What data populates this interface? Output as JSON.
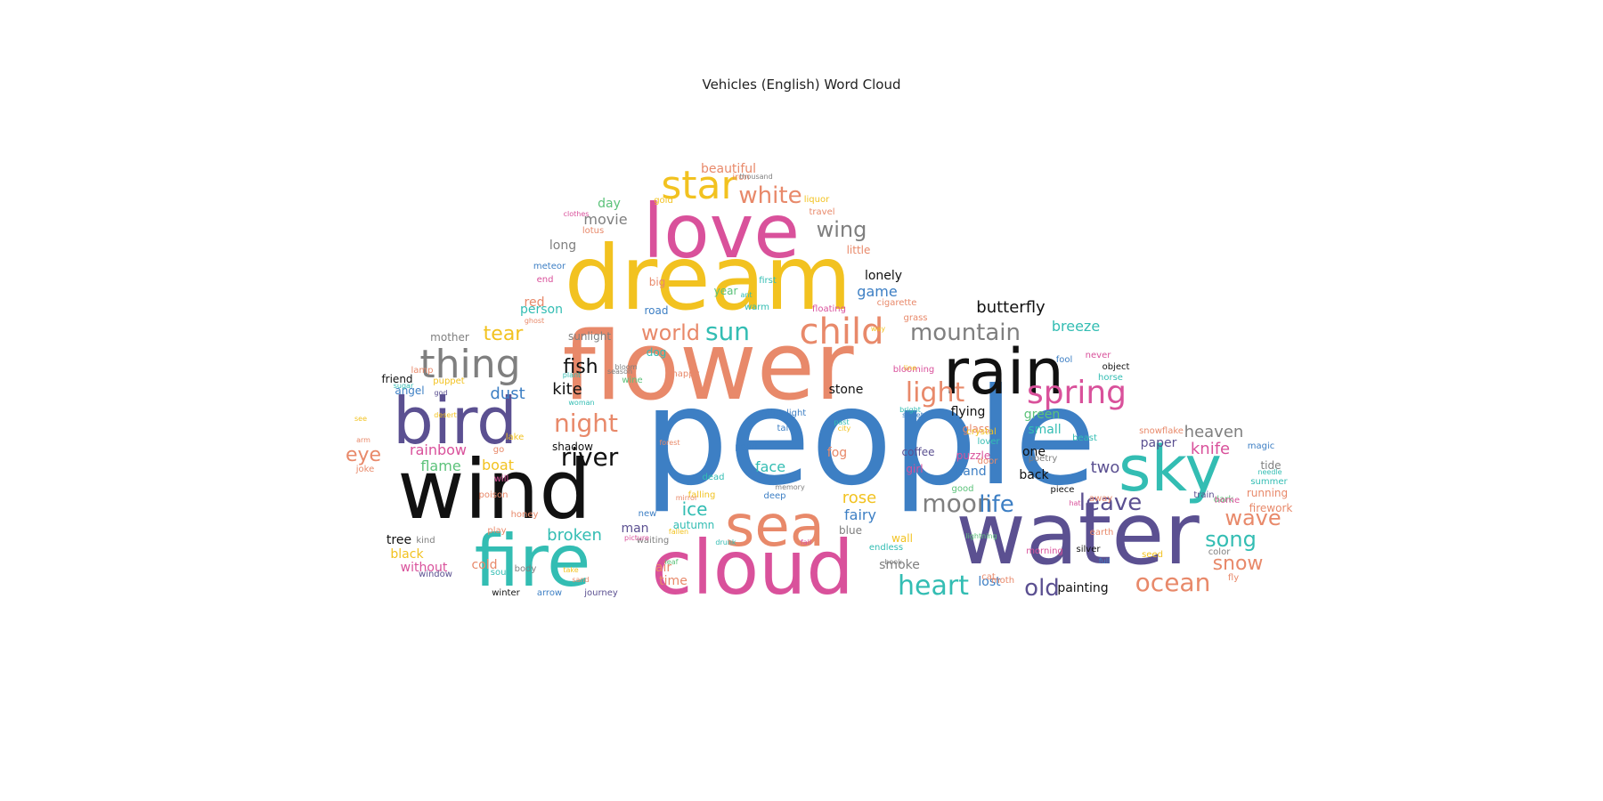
{
  "title": "Vehicles (English) Word Cloud",
  "palette": {
    "blue": "#3d7fc4",
    "orange": "#e8896a",
    "black": "#111111",
    "purple": "#5b5091",
    "pink": "#d9519b",
    "teal": "#33bdb3",
    "yellow": "#f2c220",
    "gray": "#7f7f7f",
    "green": "#5cc27a"
  },
  "words": [
    {
      "text": "people",
      "color": "blue"
    },
    {
      "text": "flower",
      "color": "orange"
    },
    {
      "text": "water",
      "color": "purple"
    },
    {
      "text": "wind",
      "color": "black"
    },
    {
      "text": "dream",
      "color": "yellow"
    },
    {
      "text": "cloud",
      "color": "pink"
    },
    {
      "text": "fire",
      "color": "teal"
    },
    {
      "text": "love",
      "color": "pink"
    },
    {
      "text": "rain",
      "color": "black"
    },
    {
      "text": "bird",
      "color": "purple"
    },
    {
      "text": "sea",
      "color": "orange"
    },
    {
      "text": "sky",
      "color": "teal"
    },
    {
      "text": "thing",
      "color": "gray"
    },
    {
      "text": "star",
      "color": "yellow"
    },
    {
      "text": "child",
      "color": "orange"
    },
    {
      "text": "spring",
      "color": "pink"
    },
    {
      "text": "light",
      "color": "orange"
    },
    {
      "text": "night",
      "color": "orange"
    },
    {
      "text": "river",
      "color": "black"
    },
    {
      "text": "white",
      "color": "orange"
    },
    {
      "text": "sun",
      "color": "teal"
    },
    {
      "text": "world",
      "color": "orange"
    },
    {
      "text": "mountain",
      "color": "gray"
    },
    {
      "text": "moon",
      "color": "gray"
    },
    {
      "text": "life",
      "color": "blue"
    },
    {
      "text": "leave",
      "color": "purple"
    },
    {
      "text": "heart",
      "color": "teal"
    },
    {
      "text": "ocean",
      "color": "orange"
    },
    {
      "text": "wave",
      "color": "orange"
    },
    {
      "text": "song",
      "color": "teal"
    },
    {
      "text": "snow",
      "color": "orange"
    },
    {
      "text": "old",
      "color": "purple"
    },
    {
      "text": "fish",
      "color": "black"
    },
    {
      "text": "tear",
      "color": "yellow"
    },
    {
      "text": "wing",
      "color": "gray"
    },
    {
      "text": "butterfly",
      "color": "black"
    },
    {
      "text": "breeze",
      "color": "teal"
    },
    {
      "text": "eye",
      "color": "orange"
    },
    {
      "text": "broken",
      "color": "teal"
    },
    {
      "text": "ice",
      "color": "teal"
    },
    {
      "text": "dust",
      "color": "blue"
    },
    {
      "text": "kite",
      "color": "black"
    },
    {
      "text": "rainbow",
      "color": "pink"
    },
    {
      "text": "flame",
      "color": "green"
    },
    {
      "text": "boat",
      "color": "yellow"
    },
    {
      "text": "face",
      "color": "teal"
    },
    {
      "text": "rose",
      "color": "yellow"
    },
    {
      "text": "fairy",
      "color": "blue"
    },
    {
      "text": "heaven",
      "color": "gray"
    },
    {
      "text": "knife",
      "color": "pink"
    },
    {
      "text": "two",
      "color": "purple"
    },
    {
      "text": "movie",
      "color": "gray"
    },
    {
      "text": "game",
      "color": "blue"
    },
    {
      "text": "day",
      "color": "green"
    },
    {
      "text": "beautiful",
      "color": "orange"
    },
    {
      "text": "stone",
      "color": "black"
    },
    {
      "text": "flying",
      "color": "black"
    },
    {
      "text": "green",
      "color": "green"
    },
    {
      "text": "small",
      "color": "teal"
    },
    {
      "text": "glass",
      "color": "orange"
    },
    {
      "text": "hand",
      "color": "blue"
    },
    {
      "text": "back",
      "color": "black"
    },
    {
      "text": "one",
      "color": "black"
    },
    {
      "text": "paper",
      "color": "purple"
    },
    {
      "text": "fog",
      "color": "orange"
    },
    {
      "text": "man",
      "color": "purple"
    },
    {
      "text": "autumn",
      "color": "teal"
    },
    {
      "text": "tree",
      "color": "black"
    },
    {
      "text": "black",
      "color": "yellow"
    },
    {
      "text": "without",
      "color": "pink"
    },
    {
      "text": "cold",
      "color": "orange"
    },
    {
      "text": "air",
      "color": "orange"
    },
    {
      "text": "time",
      "color": "orange"
    },
    {
      "text": "smoke",
      "color": "gray"
    },
    {
      "text": "lost",
      "color": "blue"
    },
    {
      "text": "painting",
      "color": "black"
    },
    {
      "text": "wall",
      "color": "yellow"
    },
    {
      "text": "blue",
      "color": "gray"
    },
    {
      "text": "coffee",
      "color": "purple"
    },
    {
      "text": "puzzle",
      "color": "pink"
    },
    {
      "text": "girl",
      "color": "pink"
    },
    {
      "text": "long",
      "color": "gray"
    },
    {
      "text": "lonely",
      "color": "black"
    },
    {
      "text": "little",
      "color": "orange"
    },
    {
      "text": "year",
      "color": "green"
    },
    {
      "text": "big",
      "color": "orange"
    },
    {
      "text": "red",
      "color": "orange"
    },
    {
      "text": "person",
      "color": "teal"
    },
    {
      "text": "road",
      "color": "blue"
    },
    {
      "text": "sunlight",
      "color": "gray"
    },
    {
      "text": "mother",
      "color": "gray"
    },
    {
      "text": "friend",
      "color": "black"
    },
    {
      "text": "angel",
      "color": "blue"
    },
    {
      "text": "shadow",
      "color": "black"
    },
    {
      "text": "dog",
      "color": "teal"
    },
    {
      "text": "tide",
      "color": "gray"
    },
    {
      "text": "running",
      "color": "orange"
    },
    {
      "text": "firework",
      "color": "orange"
    },
    {
      "text": "summer",
      "color": "teal"
    },
    {
      "text": "winter",
      "color": "black"
    },
    {
      "text": "arrow",
      "color": "blue"
    },
    {
      "text": "journey",
      "color": "purple"
    },
    {
      "text": "window",
      "color": "purple"
    },
    {
      "text": "soul",
      "color": "teal"
    },
    {
      "text": "body",
      "color": "gray"
    },
    {
      "text": "kind",
      "color": "gray"
    },
    {
      "text": "new",
      "color": "blue"
    },
    {
      "text": "falling",
      "color": "yellow"
    },
    {
      "text": "dead",
      "color": "teal"
    },
    {
      "text": "tale",
      "color": "blue"
    },
    {
      "text": "moonlight",
      "color": "blue"
    },
    {
      "text": "pearl",
      "color": "blue"
    },
    {
      "text": "memory",
      "color": "gray"
    },
    {
      "text": "deep",
      "color": "blue"
    },
    {
      "text": "mirror",
      "color": "orange"
    },
    {
      "text": "waiting",
      "color": "gray"
    },
    {
      "text": "picture",
      "color": "pink"
    },
    {
      "text": "fallen",
      "color": "yellow"
    },
    {
      "text": "drunk",
      "color": "teal"
    },
    {
      "text": "fall",
      "color": "pink"
    },
    {
      "text": "endless",
      "color": "teal"
    },
    {
      "text": "book",
      "color": "gray"
    },
    {
      "text": "lightning",
      "color": "green"
    },
    {
      "text": "morning",
      "color": "pink"
    },
    {
      "text": "silver",
      "color": "black"
    },
    {
      "text": "earth",
      "color": "orange"
    },
    {
      "text": "seed",
      "color": "yellow"
    },
    {
      "text": "full",
      "color": "blue"
    },
    {
      "text": "cat",
      "color": "orange"
    },
    {
      "text": "moth",
      "color": "orange"
    },
    {
      "text": "color",
      "color": "gray"
    },
    {
      "text": "fly",
      "color": "orange"
    },
    {
      "text": "dark",
      "color": "green"
    },
    {
      "text": "train",
      "color": "purple"
    },
    {
      "text": "home",
      "color": "pink"
    },
    {
      "text": "needle",
      "color": "teal"
    },
    {
      "text": "magic",
      "color": "blue"
    },
    {
      "text": "snowflake",
      "color": "orange"
    },
    {
      "text": "beast",
      "color": "teal"
    },
    {
      "text": "away",
      "color": "orange"
    },
    {
      "text": "hat",
      "color": "pink"
    },
    {
      "text": "piece",
      "color": "black"
    },
    {
      "text": "poetry",
      "color": "gray"
    },
    {
      "text": "lover",
      "color": "teal"
    },
    {
      "text": "good",
      "color": "green"
    },
    {
      "text": "door",
      "color": "orange"
    },
    {
      "text": "crystal",
      "color": "yellow"
    },
    {
      "text": "object",
      "color": "black"
    },
    {
      "text": "horse",
      "color": "teal"
    },
    {
      "text": "never",
      "color": "pink"
    },
    {
      "text": "fool",
      "color": "blue"
    },
    {
      "text": "blooming",
      "color": "pink"
    },
    {
      "text": "grass",
      "color": "orange"
    },
    {
      "text": "line",
      "color": "yellow"
    },
    {
      "text": "sweet",
      "color": "blue"
    },
    {
      "text": "bright",
      "color": "teal"
    },
    {
      "text": "city",
      "color": "yellow"
    },
    {
      "text": "past",
      "color": "teal"
    },
    {
      "text": "way",
      "color": "yellow"
    },
    {
      "text": "cigarette",
      "color": "orange"
    },
    {
      "text": "floating",
      "color": "pink"
    },
    {
      "text": "first",
      "color": "teal"
    },
    {
      "text": "warm",
      "color": "teal"
    },
    {
      "text": "ant",
      "color": "teal"
    },
    {
      "text": "travel",
      "color": "orange"
    },
    {
      "text": "liquor",
      "color": "yellow"
    },
    {
      "text": "iron",
      "color": "orange"
    },
    {
      "text": "gold",
      "color": "yellow"
    },
    {
      "text": "thousand",
      "color": "gray"
    },
    {
      "text": "clothes",
      "color": "pink"
    },
    {
      "text": "lotus",
      "color": "orange"
    },
    {
      "text": "meteor",
      "color": "blue"
    },
    {
      "text": "end",
      "color": "pink"
    },
    {
      "text": "ghost",
      "color": "orange"
    },
    {
      "text": "happy",
      "color": "orange"
    },
    {
      "text": "bloom",
      "color": "gray"
    },
    {
      "text": "wine",
      "color": "green"
    },
    {
      "text": "season",
      "color": "gray"
    },
    {
      "text": "plant",
      "color": "teal"
    },
    {
      "text": "woman",
      "color": "teal"
    },
    {
      "text": "forest",
      "color": "orange"
    },
    {
      "text": "lake",
      "color": "yellow"
    },
    {
      "text": "go",
      "color": "orange"
    },
    {
      "text": "will",
      "color": "pink"
    },
    {
      "text": "poison",
      "color": "orange"
    },
    {
      "text": "honey",
      "color": "orange"
    },
    {
      "text": "play",
      "color": "orange"
    },
    {
      "text": "take",
      "color": "yellow"
    },
    {
      "text": "sand",
      "color": "orange"
    },
    {
      "text": "leaf",
      "color": "green"
    },
    {
      "text": "puppet",
      "color": "yellow"
    },
    {
      "text": "lamp",
      "color": "orange"
    },
    {
      "text": "god",
      "color": "purple"
    },
    {
      "text": "sugar",
      "color": "teal"
    },
    {
      "text": "desert",
      "color": "yellow"
    },
    {
      "text": "see",
      "color": "yellow"
    },
    {
      "text": "arm",
      "color": "orange"
    },
    {
      "text": "joke",
      "color": "orange"
    },
    {
      "text": "street",
      "color": "orange"
    },
    {
      "text": "blood",
      "color": "yellow"
    }
  ]
}
